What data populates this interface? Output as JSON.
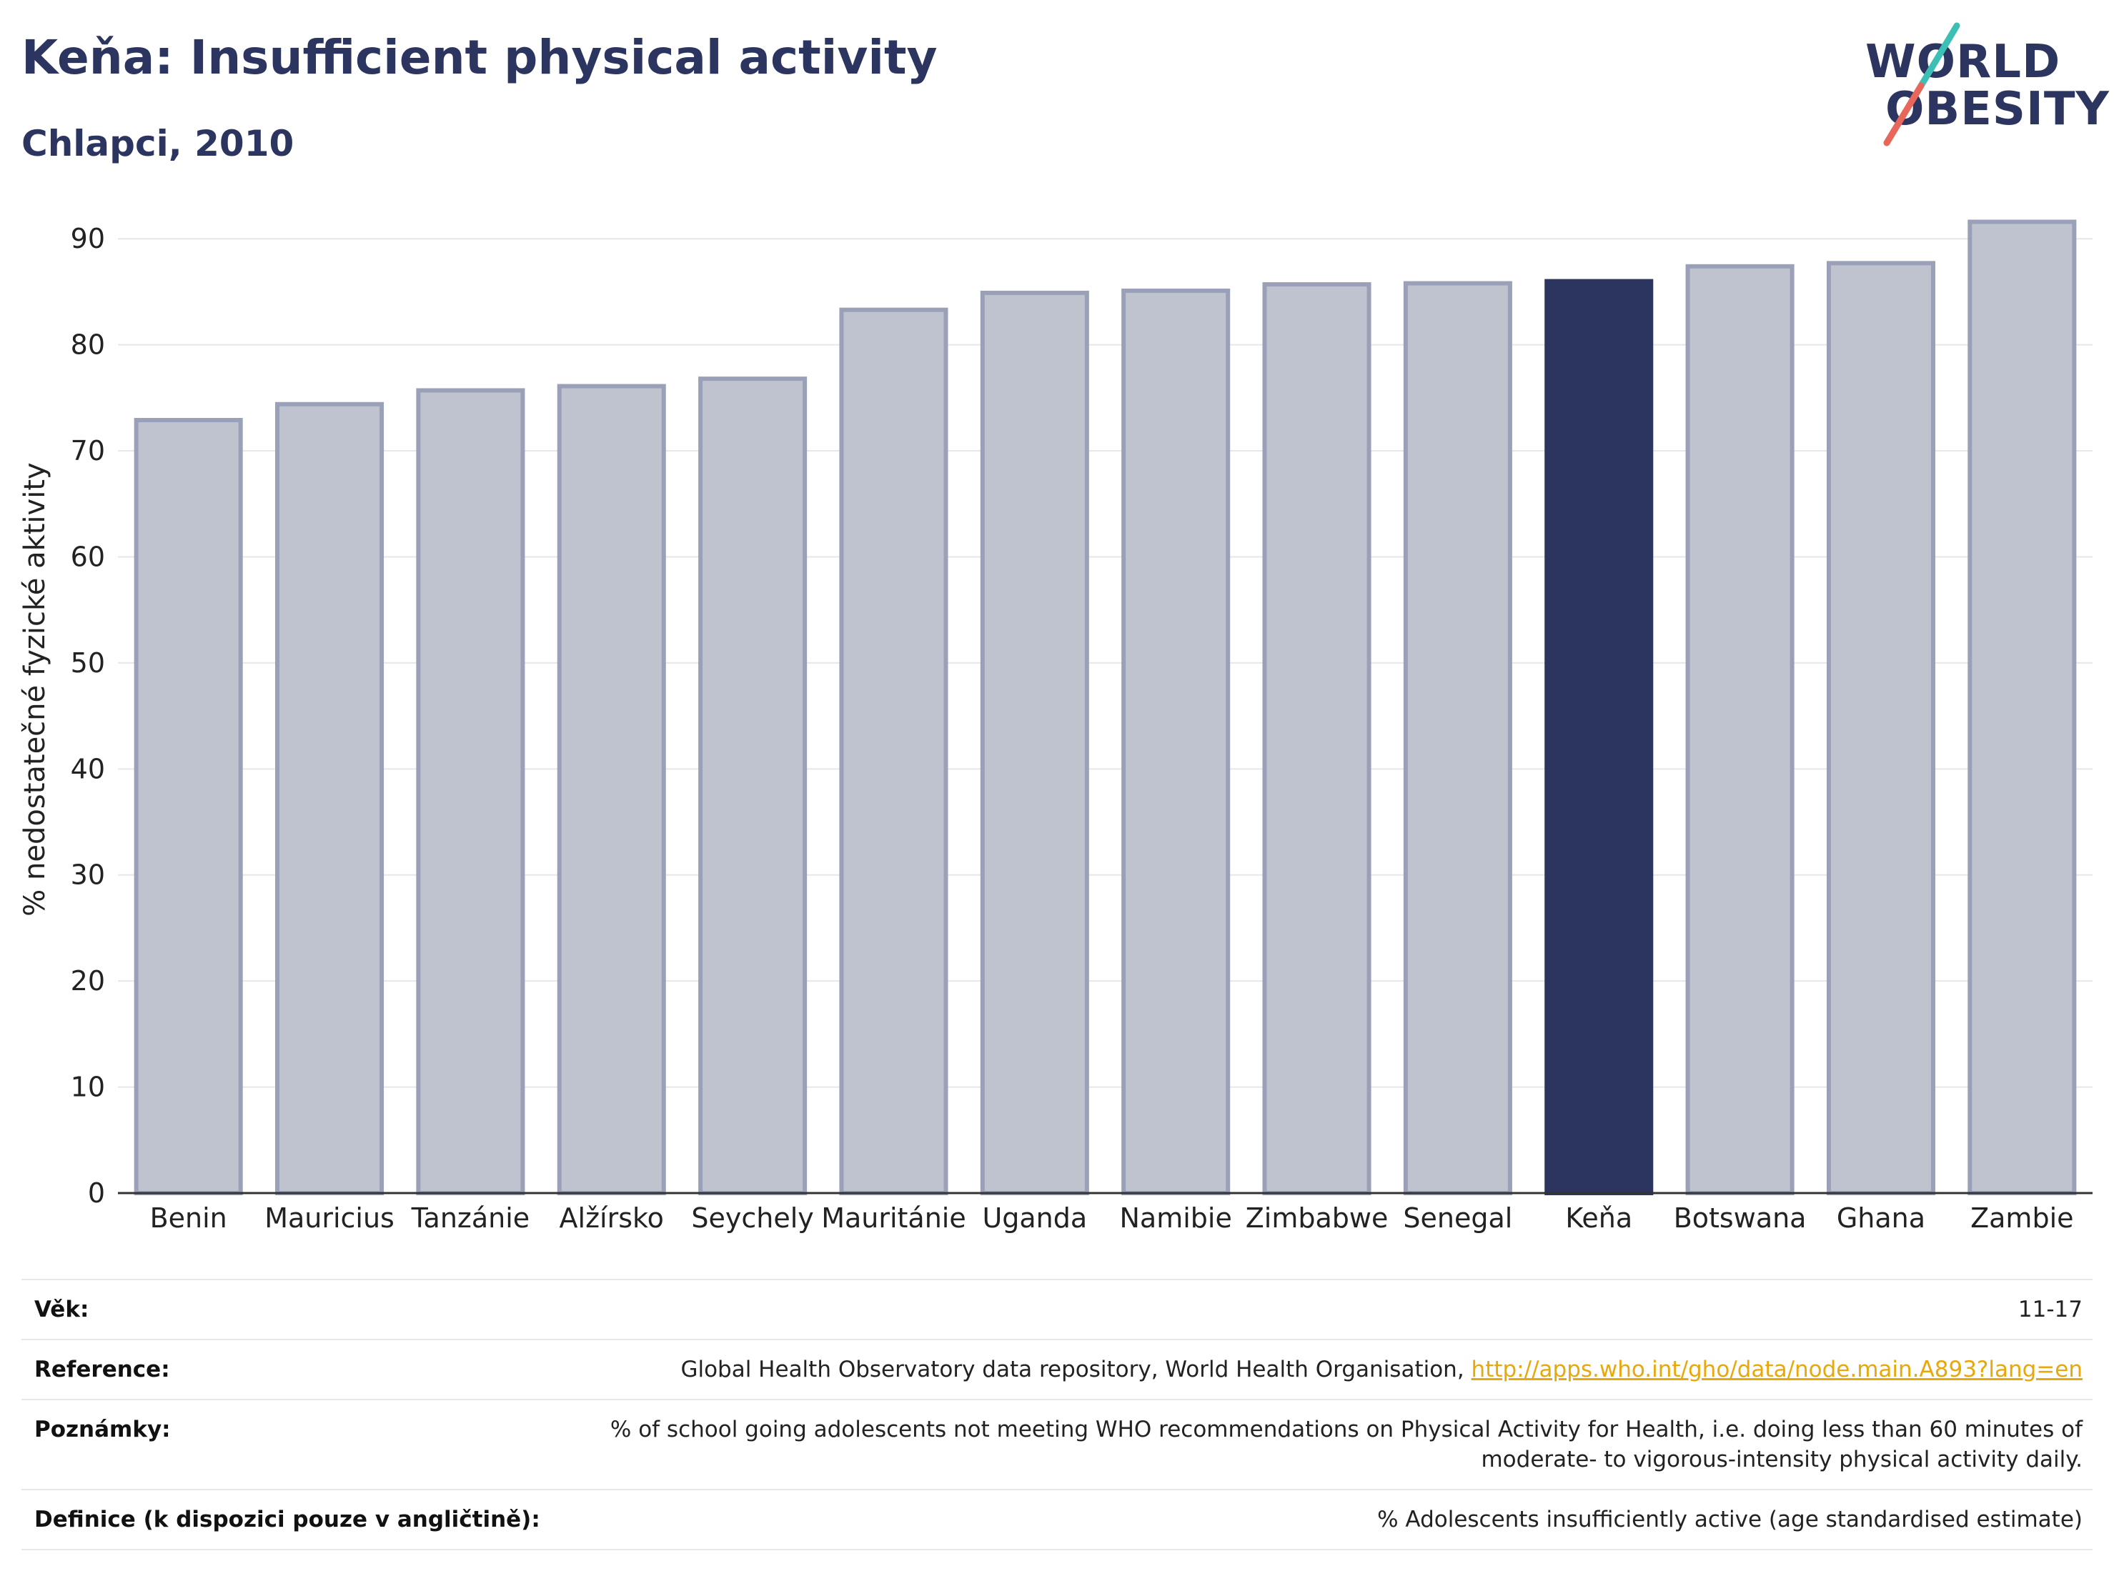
{
  "header": {
    "title": "Keňa: Insufficient physical activity",
    "subtitle": "Chlapci, 2010"
  },
  "logo": {
    "line1": "WORLD",
    "line2": "OBESITY",
    "accent_colors": [
      "#3cbfb5",
      "#e8665a"
    ]
  },
  "colors": {
    "bar": "#bfc3d0",
    "bar_border": "#9aa0b8",
    "highlight": "#2b3560",
    "grid": "#e6e6ec",
    "axis": "#333333"
  },
  "chart_data": {
    "type": "bar",
    "categories": [
      "Benin",
      "Mauricius",
      "Tanzánie",
      "Alžírsko",
      "Seychely",
      "Mauritánie",
      "Uganda",
      "Namibie",
      "Zimbabwe",
      "Senegal",
      "Keňa",
      "Botswana",
      "Ghana",
      "Zambie"
    ],
    "values": [
      72.9,
      74.4,
      75.7,
      76.1,
      76.8,
      83.3,
      84.9,
      85.1,
      85.7,
      85.8,
      86.0,
      87.4,
      87.7,
      91.6
    ],
    "highlight": "Keňa",
    "ylabel": "% nedostatečné fyzické aktivity",
    "xlabel": "",
    "ylim": [
      0,
      95
    ],
    "yticks": [
      0,
      10,
      20,
      30,
      40,
      50,
      60,
      70,
      80,
      90
    ],
    "grid": true
  },
  "info": {
    "age_label": "Věk:",
    "age_value": "11-17",
    "reference_label": "Reference:",
    "reference_text": "Global Health Observatory data repository, World Health Organisation,",
    "reference_link": "http://apps.who.int/gho/data/node.main.A893?lang=en",
    "notes_label": "Poznámky:",
    "notes_text": "% of school going adolescents not meeting WHO recommendations on Physical Activity for Health, i.e. doing less than 60 minutes of moderate- to vigorous-intensity physical activity daily.",
    "definition_label": "Definice (k dispozici pouze v angličtině):",
    "definition_text": "% Adolescents insufficiently active (age standardised estimate)"
  }
}
